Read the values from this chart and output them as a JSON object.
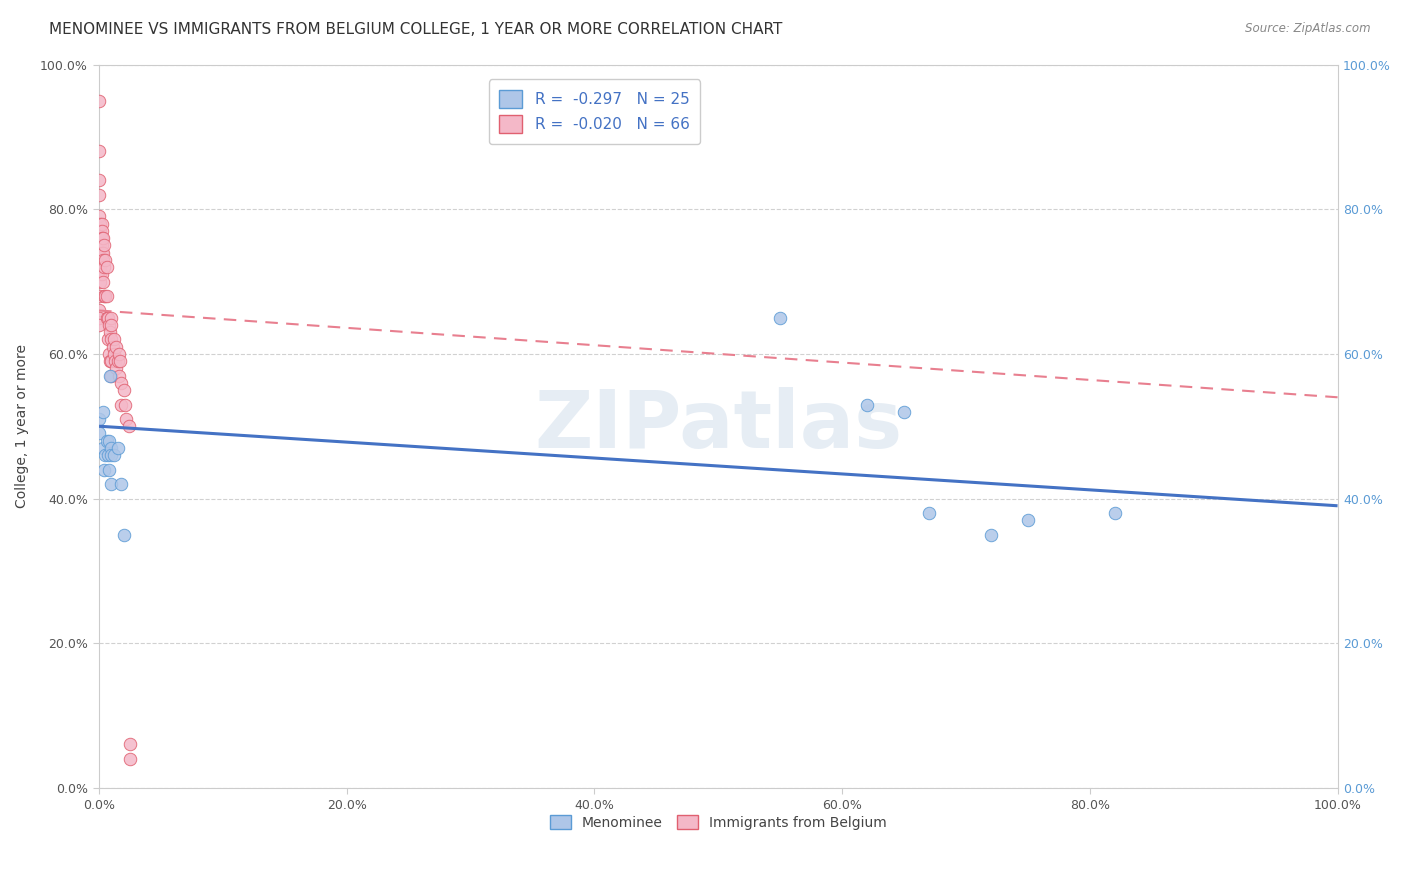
{
  "title": "MENOMINEE VS IMMIGRANTS FROM BELGIUM COLLEGE, 1 YEAR OR MORE CORRELATION CHART",
  "source": "Source: ZipAtlas.com",
  "xlabel": "",
  "ylabel": "College, 1 year or more",
  "watermark": "ZIPatlas",
  "xlim": [
    0.0,
    1.0
  ],
  "ylim": [
    0.0,
    1.0
  ],
  "xticks": [
    0.0,
    0.2,
    0.4,
    0.6,
    0.8,
    1.0
  ],
  "yticks": [
    0.0,
    0.2,
    0.4,
    0.6,
    0.8,
    1.0
  ],
  "xtick_labels": [
    "0.0%",
    "20.0%",
    "40.0%",
    "60.0%",
    "80.0%",
    "100.0%"
  ],
  "ytick_labels": [
    "0.0%",
    "20.0%",
    "40.0%",
    "60.0%",
    "80.0%",
    "100.0%"
  ],
  "legend_entries": [
    {
      "label": "R =  -0.297   N = 25"
    },
    {
      "label": "R =  -0.020   N = 66"
    }
  ],
  "menominee_x": [
    0.0,
    0.0,
    0.003,
    0.003,
    0.004,
    0.005,
    0.006,
    0.007,
    0.008,
    0.008,
    0.009,
    0.01,
    0.01,
    0.01,
    0.012,
    0.015,
    0.018,
    0.02,
    0.55,
    0.62,
    0.65,
    0.67,
    0.72,
    0.75,
    0.82
  ],
  "menominee_y": [
    0.49,
    0.51,
    0.52,
    0.47,
    0.44,
    0.46,
    0.48,
    0.46,
    0.48,
    0.44,
    0.57,
    0.47,
    0.42,
    0.46,
    0.46,
    0.47,
    0.42,
    0.35,
    0.65,
    0.53,
    0.52,
    0.38,
    0.35,
    0.37,
    0.38
  ],
  "belgium_x": [
    0.0,
    0.0,
    0.0,
    0.0,
    0.0,
    0.0,
    0.0,
    0.0,
    0.0,
    0.0,
    0.0,
    0.0,
    0.0,
    0.001,
    0.001,
    0.001,
    0.001,
    0.001,
    0.001,
    0.002,
    0.002,
    0.002,
    0.002,
    0.002,
    0.002,
    0.003,
    0.003,
    0.003,
    0.003,
    0.004,
    0.004,
    0.004,
    0.005,
    0.005,
    0.006,
    0.006,
    0.006,
    0.007,
    0.007,
    0.008,
    0.008,
    0.009,
    0.009,
    0.01,
    0.01,
    0.01,
    0.01,
    0.01,
    0.011,
    0.012,
    0.012,
    0.013,
    0.014,
    0.014,
    0.015,
    0.016,
    0.016,
    0.017,
    0.018,
    0.018,
    0.02,
    0.021,
    0.022,
    0.024,
    0.025,
    0.025
  ],
  "belgium_y": [
    0.95,
    0.88,
    0.84,
    0.82,
    0.79,
    0.77,
    0.74,
    0.73,
    0.72,
    0.68,
    0.66,
    0.65,
    0.64,
    0.78,
    0.77,
    0.75,
    0.72,
    0.71,
    0.7,
    0.78,
    0.77,
    0.76,
    0.75,
    0.74,
    0.71,
    0.76,
    0.74,
    0.73,
    0.7,
    0.75,
    0.72,
    0.68,
    0.73,
    0.68,
    0.72,
    0.68,
    0.65,
    0.65,
    0.62,
    0.64,
    0.6,
    0.63,
    0.59,
    0.65,
    0.64,
    0.62,
    0.59,
    0.57,
    0.61,
    0.62,
    0.6,
    0.59,
    0.61,
    0.58,
    0.59,
    0.6,
    0.57,
    0.59,
    0.56,
    0.53,
    0.55,
    0.53,
    0.51,
    0.5,
    0.06,
    0.04
  ],
  "menominee_color": "#aec6e8",
  "menominee_edge": "#5b9bd5",
  "belgium_color": "#f4b8c8",
  "belgium_edge": "#e06070",
  "menominee_line_color": "#4472c4",
  "belgium_line_color": "#e87f8f",
  "menominee_line_start_y": 0.5,
  "menominee_line_end_y": 0.39,
  "belgium_line_start_y": 0.66,
  "belgium_line_end_y": 0.54,
  "grid_color": "#cccccc",
  "background_color": "#ffffff",
  "title_fontsize": 11,
  "axis_fontsize": 10,
  "tick_fontsize": 9,
  "marker_size": 9,
  "right_ytick_color": "#5b9bd5"
}
